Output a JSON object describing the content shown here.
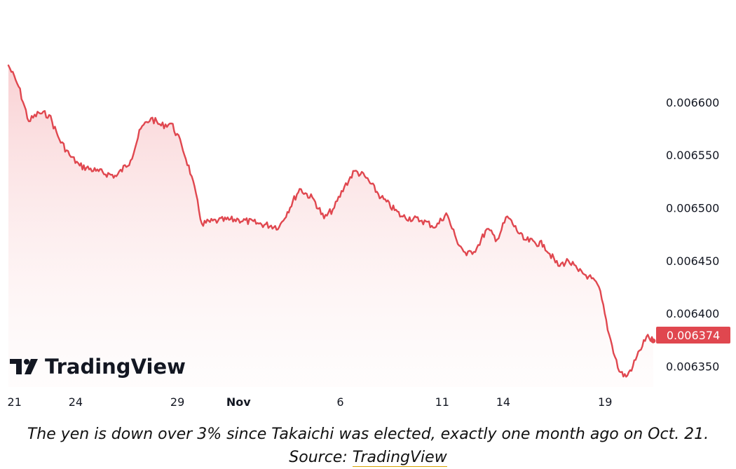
{
  "brand": {
    "name": "TradingView"
  },
  "chart_data": {
    "type": "area",
    "title": "",
    "xlabel": "",
    "ylabel": "",
    "x_tick_labels": [
      {
        "label": "21",
        "date": "2025-10-21",
        "bold": false
      },
      {
        "label": "24",
        "date": "2025-10-24",
        "bold": false
      },
      {
        "label": "29",
        "date": "2025-10-29",
        "bold": false
      },
      {
        "label": "Nov",
        "date": "2025-11-01",
        "bold": true
      },
      {
        "label": "6",
        "date": "2025-11-06",
        "bold": false
      },
      {
        "label": "11",
        "date": "2025-11-11",
        "bold": false
      },
      {
        "label": "14",
        "date": "2025-11-14",
        "bold": false
      },
      {
        "label": "19",
        "date": "2025-11-19",
        "bold": false
      }
    ],
    "y_tick_labels": [
      "0.006600",
      "0.006550",
      "0.006500",
      "0.006450",
      "0.006400",
      "0.006350"
    ],
    "y_ticks": [
      0.0066,
      0.00655,
      0.0065,
      0.00645,
      0.0064,
      0.00635
    ],
    "ylim": [
      0.006325,
      0.006685
    ],
    "xlim": [
      "2025-10-21",
      "2025-11-21"
    ],
    "grid": false,
    "line_color": "#e0474f",
    "fill_color": "#f8c9cc",
    "last_value_label": "0.006374",
    "last_value": 0.006374,
    "series": [
      {
        "x": [
          "2025-10-21",
          "2025-10-21",
          "2025-10-22",
          "2025-10-22",
          "2025-10-23",
          "2025-10-23",
          "2025-10-24",
          "2025-10-24",
          "2025-10-25",
          "2025-10-26",
          "2025-10-27",
          "2025-10-27",
          "2025-10-28",
          "2025-10-28",
          "2025-10-29",
          "2025-10-29",
          "2025-10-30",
          "2025-10-30",
          "2025-10-31",
          "2025-11-01",
          "2025-11-02",
          "2025-11-03",
          "2025-11-04",
          "2025-11-05",
          "2025-11-05",
          "2025-11-06",
          "2025-11-06",
          "2025-11-07",
          "2025-11-07",
          "2025-11-08",
          "2025-11-09",
          "2025-11-10",
          "2025-11-11",
          "2025-11-11",
          "2025-11-12",
          "2025-11-12",
          "2025-11-13",
          "2025-11-13",
          "2025-11-14",
          "2025-11-14",
          "2025-11-15",
          "2025-11-16",
          "2025-11-17",
          "2025-11-17",
          "2025-11-18",
          "2025-11-18",
          "2025-11-19",
          "2025-11-19",
          "2025-11-20",
          "2025-11-20",
          "2025-11-20",
          "2025-11-21",
          "2025-11-21",
          "2025-11-21"
        ],
        "values": [
          0.006635,
          0.006615,
          0.006582,
          0.00659,
          0.006588,
          0.006565,
          0.00655,
          0.00654,
          0.006535,
          0.00653,
          0.006545,
          0.006575,
          0.006585,
          0.006578,
          0.00658,
          0.00656,
          0.00653,
          0.006485,
          0.006488,
          0.006489,
          0.006485,
          0.006482,
          0.006518,
          0.006508,
          0.00649,
          0.0065,
          0.00652,
          0.006535,
          0.00653,
          0.00651,
          0.006492,
          0.006488,
          0.006482,
          0.006495,
          0.00647,
          0.006455,
          0.006462,
          0.00648,
          0.00647,
          0.006492,
          0.00647,
          0.006465,
          0.006445,
          0.00645,
          0.00644,
          0.006435,
          0.006425,
          0.00638,
          0.006345,
          0.00634,
          0.00635,
          0.006365,
          0.006378,
          0.006374
        ]
      }
    ]
  },
  "caption": {
    "text": "The yen is down over 3% since Takaichi was elected, exactly one month ago on Oct. 21. Source: ",
    "source_link": "TradingView"
  }
}
